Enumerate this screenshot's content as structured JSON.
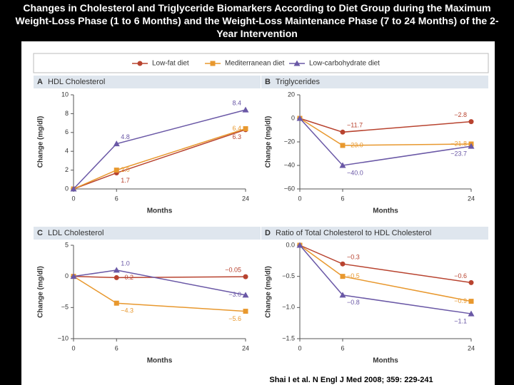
{
  "title": "Changes in Cholesterol and Triglyceride Biomarkers According to Diet Group during the Maximum Weight-Loss Phase (1 to 6 Months) and the Weight-Loss Maintenance Phase (7 to 24 Months) of the 2-Year Intervention",
  "source": "Shai I et al. N Engl J Med 2008; 359: 229-241",
  "chart_data": [
    {
      "type": "line",
      "label": "A",
      "title": "HDL Cholesterol",
      "x_label": "Months",
      "y_label": "Change (mg/dl)",
      "x": [
        0,
        6,
        24
      ],
      "xlim": [
        0,
        24
      ],
      "xticks": [
        0,
        6,
        24
      ],
      "ylim": [
        0,
        10
      ],
      "yticks": [
        0,
        2,
        4,
        6,
        8,
        10
      ],
      "series": [
        {
          "name": "Low-fat diet",
          "color": "#b8432f",
          "values": [
            0,
            1.7,
            6.3
          ],
          "value_labels": [
            null,
            "1.7",
            "6.3"
          ]
        },
        {
          "name": "Mediterranean diet",
          "color": "#e8982e",
          "values": [
            0,
            2.0,
            6.4
          ],
          "value_labels": [
            null,
            "2.0",
            "6.4"
          ]
        },
        {
          "name": "Low-carbohydrate diet",
          "color": "#6a58a6",
          "values": [
            0,
            4.8,
            8.4
          ],
          "value_labels": [
            null,
            "4.8",
            "8.4"
          ]
        }
      ]
    },
    {
      "type": "line",
      "label": "B",
      "title": "Triglycerides",
      "x_label": "Months",
      "y_label": "Change (mg/dl)",
      "x": [
        0,
        6,
        24
      ],
      "xlim": [
        0,
        24
      ],
      "xticks": [
        0,
        6,
        24
      ],
      "ylim": [
        -60,
        20
      ],
      "yticks": [
        {
          "value": 20,
          "label": "20"
        },
        0,
        {
          "value": -20,
          "label": "−20"
        },
        {
          "value": -40,
          "label": "−40"
        },
        {
          "value": -60,
          "label": "−60"
        }
      ],
      "series": [
        {
          "color": "#b8432f",
          "values": [
            0,
            -11.7,
            -2.8
          ],
          "value_labels": [
            null,
            "−11.7",
            "−2.8"
          ]
        },
        {
          "color": "#e8982e",
          "values": [
            0,
            -23.0,
            -21.8
          ],
          "value_labels": [
            null,
            "−23.0",
            "−21.8"
          ]
        },
        {
          "color": "#6a58a6",
          "values": [
            0,
            -40.0,
            -23.7
          ],
          "value_labels": [
            null,
            "−40.0",
            "−23.7"
          ]
        }
      ]
    },
    {
      "type": "line",
      "label": "C",
      "title": "LDL Cholesterol",
      "x_label": "Months",
      "y_label": "Change (mg/dl)",
      "x": [
        0,
        6,
        24
      ],
      "xlim": [
        0,
        24
      ],
      "xticks": [
        0,
        6,
        24
      ],
      "ylim": [
        -10,
        5
      ],
      "yticks": [
        5,
        0,
        {
          "value": -5,
          "label": "−5"
        },
        {
          "value": -10,
          "label": "−10"
        }
      ],
      "series": [
        {
          "color": "#b8432f",
          "values": [
            0,
            -0.2,
            -0.05
          ],
          "value_labels": [
            null,
            "−0.2",
            "−0.05"
          ]
        },
        {
          "color": "#e8982e",
          "values": [
            0,
            -4.3,
            -5.6
          ],
          "value_labels": [
            null,
            "−4.3",
            "−5.6"
          ]
        },
        {
          "color": "#6a58a6",
          "values": [
            0,
            1.0,
            -3.0
          ],
          "value_labels": [
            null,
            "1.0",
            "−3.0"
          ]
        }
      ]
    },
    {
      "type": "line",
      "label": "D",
      "title": "Ratio of Total Cholesterol to HDL Cholesterol",
      "x_label": "Months",
      "y_label": "Change (mg/dl)",
      "x": [
        0,
        6,
        24
      ],
      "xlim": [
        0,
        24
      ],
      "xticks": [
        0,
        6,
        24
      ],
      "ylim": [
        -1.5,
        0
      ],
      "yticks": [
        {
          "value": 0,
          "label": "0.0"
        },
        {
          "value": -0.5,
          "label": "−0.5"
        },
        {
          "value": -1,
          "label": "−1.0"
        },
        {
          "value": -1.5,
          "label": "−1.5"
        }
      ],
      "series": [
        {
          "color": "#b8432f",
          "values": [
            0,
            -0.3,
            -0.6
          ],
          "value_labels": [
            null,
            "−0.3",
            "−0.6"
          ]
        },
        {
          "color": "#e8982e",
          "values": [
            0,
            -0.5,
            -0.9
          ],
          "value_labels": [
            null,
            "−0.5",
            "−0.9"
          ]
        },
        {
          "color": "#6a58a6",
          "values": [
            0,
            -0.8,
            -1.1
          ],
          "value_labels": [
            null,
            "−0.8",
            "−1.1"
          ]
        }
      ]
    }
  ]
}
